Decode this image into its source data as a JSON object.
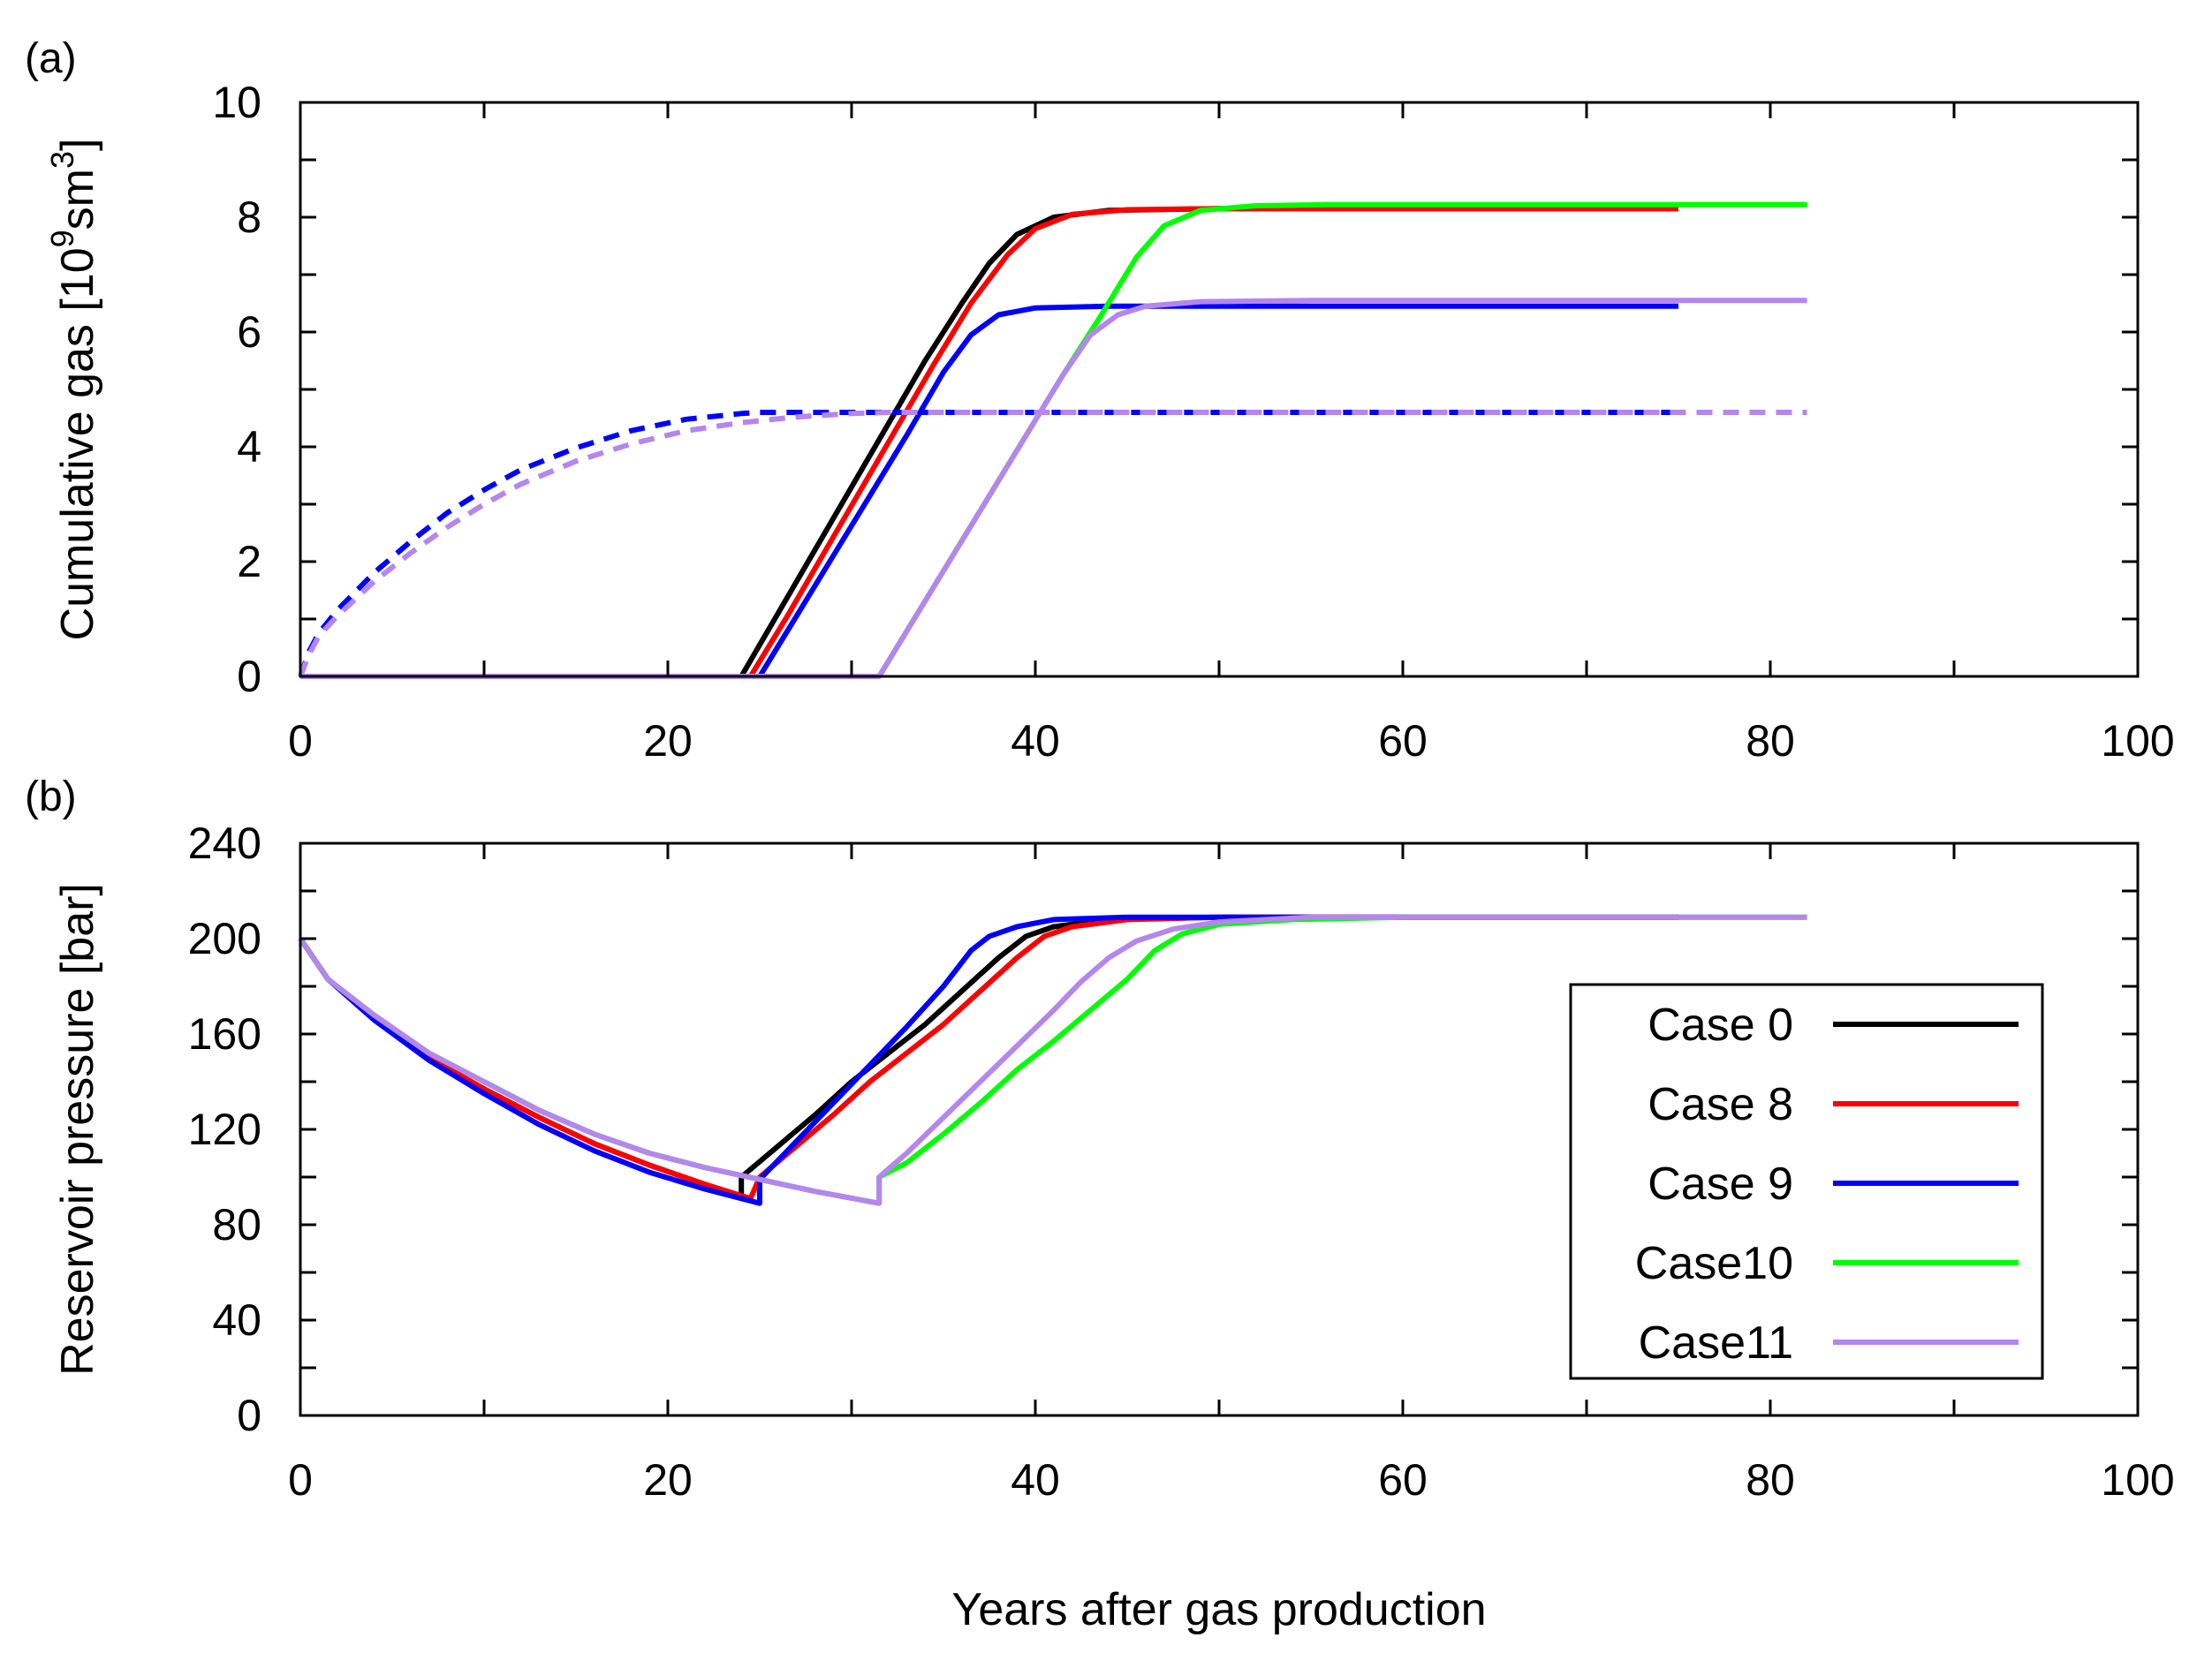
{
  "xlabel": "Years after gas production",
  "legend": {
    "entries": [
      {
        "label": "Case 0",
        "color": "#000000"
      },
      {
        "label": "Case 8",
        "color": "#ff0000"
      },
      {
        "label": "Case 9",
        "color": "#0000ff"
      },
      {
        "label": "Case10",
        "color": "#00ff00"
      },
      {
        "label": "Case11",
        "color": "#b586ee"
      }
    ]
  },
  "chart_data": [
    {
      "panel": "(a)",
      "type": "line",
      "ylabel_parts": {
        "pre": "Cumulative gas [10",
        "sup1": "9",
        "mid": "sm",
        "sup2": "3",
        "post": "]"
      },
      "xlim": [
        0,
        100
      ],
      "ylim": [
        0,
        10
      ],
      "xticks": [
        0,
        20,
        40,
        60,
        80,
        100
      ],
      "yticks": [
        0,
        2,
        4,
        6,
        8,
        10
      ],
      "series": [
        {
          "name": "Case 0",
          "color": "#000000",
          "dash": false,
          "points": [
            [
              0,
              0
            ],
            [
              24,
              0
            ],
            [
              26,
              1.1
            ],
            [
              28,
              2.2
            ],
            [
              30,
              3.3
            ],
            [
              32,
              4.4
            ],
            [
              34,
              5.5
            ],
            [
              36,
              6.5
            ],
            [
              37.5,
              7.2
            ],
            [
              39,
              7.7
            ],
            [
              41,
              8.0
            ],
            [
              44,
              8.12
            ],
            [
              50,
              8.15
            ],
            [
              60,
              8.15
            ],
            [
              75,
              8.15
            ]
          ]
        },
        {
          "name": "Case 8",
          "color": "#ff0000",
          "dash": false,
          "points": [
            [
              0,
              0
            ],
            [
              24.5,
              0
            ],
            [
              26.5,
              1.05
            ],
            [
              28.5,
              2.15
            ],
            [
              30.5,
              3.25
            ],
            [
              32.5,
              4.35
            ],
            [
              34.5,
              5.45
            ],
            [
              36.5,
              6.5
            ],
            [
              38.5,
              7.35
            ],
            [
              40,
              7.8
            ],
            [
              42,
              8.05
            ],
            [
              45,
              8.13
            ],
            [
              50,
              8.15
            ],
            [
              60,
              8.15
            ],
            [
              75,
              8.15
            ]
          ]
        },
        {
          "name": "Case 9",
          "color": "#0000ff",
          "dash": false,
          "points": [
            [
              0,
              0
            ],
            [
              25,
              0
            ],
            [
              27,
              1.05
            ],
            [
              29,
              2.1
            ],
            [
              31,
              3.15
            ],
            [
              33,
              4.2
            ],
            [
              35,
              5.3
            ],
            [
              36.5,
              5.95
            ],
            [
              38,
              6.3
            ],
            [
              40,
              6.42
            ],
            [
              44,
              6.45
            ],
            [
              50,
              6.45
            ],
            [
              60,
              6.45
            ],
            [
              75,
              6.45
            ]
          ]
        },
        {
          "name": "Case10",
          "color": "#00ff00",
          "dash": false,
          "points": [
            [
              0,
              0
            ],
            [
              31.5,
              0
            ],
            [
              33.5,
              1.05
            ],
            [
              35.5,
              2.1
            ],
            [
              37.5,
              3.15
            ],
            [
              39.5,
              4.2
            ],
            [
              41.5,
              5.25
            ],
            [
              43.5,
              6.25
            ],
            [
              45.5,
              7.3
            ],
            [
              47,
              7.85
            ],
            [
              49,
              8.12
            ],
            [
              52,
              8.2
            ],
            [
              56,
              8.22
            ],
            [
              65,
              8.22
            ],
            [
              82,
              8.22
            ]
          ]
        },
        {
          "name": "Case11",
          "color": "#b586ee",
          "dash": false,
          "points": [
            [
              0,
              0
            ],
            [
              31.5,
              0
            ],
            [
              33.5,
              1.05
            ],
            [
              35.5,
              2.1
            ],
            [
              37.5,
              3.15
            ],
            [
              39.5,
              4.2
            ],
            [
              41.5,
              5.25
            ],
            [
              43,
              5.95
            ],
            [
              44.5,
              6.3
            ],
            [
              46,
              6.45
            ],
            [
              49,
              6.53
            ],
            [
              55,
              6.55
            ],
            [
              65,
              6.55
            ],
            [
              82,
              6.55
            ]
          ]
        },
        {
          "name": "Case 9 dashed",
          "color": "#0000ff",
          "dash": true,
          "points": [
            [
              0,
              0
            ],
            [
              0.5,
              0.45
            ],
            [
              1,
              0.75
            ],
            [
              2,
              1.15
            ],
            [
              4,
              1.8
            ],
            [
              6,
              2.35
            ],
            [
              8,
              2.85
            ],
            [
              10,
              3.25
            ],
            [
              12,
              3.6
            ],
            [
              15,
              3.98
            ],
            [
              18,
              4.28
            ],
            [
              21,
              4.48
            ],
            [
              24,
              4.58
            ],
            [
              25,
              4.6
            ],
            [
              30,
              4.6
            ],
            [
              40,
              4.6
            ],
            [
              50,
              4.6
            ],
            [
              75,
              4.6
            ]
          ]
        },
        {
          "name": "Case11 dashed",
          "color": "#b586ee",
          "dash": true,
          "points": [
            [
              0,
              0
            ],
            [
              0.5,
              0.4
            ],
            [
              1,
              0.7
            ],
            [
              2,
              1.05
            ],
            [
              4,
              1.65
            ],
            [
              6,
              2.15
            ],
            [
              8,
              2.6
            ],
            [
              10,
              3.0
            ],
            [
              12,
              3.35
            ],
            [
              15,
              3.75
            ],
            [
              18,
              4.05
            ],
            [
              21,
              4.28
            ],
            [
              24,
              4.42
            ],
            [
              27,
              4.52
            ],
            [
              30,
              4.58
            ],
            [
              32,
              4.6
            ],
            [
              40,
              4.6
            ],
            [
              55,
              4.6
            ],
            [
              82,
              4.6
            ]
          ]
        }
      ]
    },
    {
      "panel": "(b)",
      "type": "line",
      "ylabel": "Reservoir pressure [bar]",
      "xlim": [
        0,
        100
      ],
      "ylim": [
        0,
        240
      ],
      "xticks": [
        0,
        20,
        40,
        60,
        80,
        100
      ],
      "yticks": [
        0,
        40,
        80,
        120,
        160,
        200,
        240
      ],
      "series": [
        {
          "name": "Case 0",
          "color": "#000000",
          "dash": false,
          "points": [
            [
              0,
              200
            ],
            [
              1.5,
              183
            ],
            [
              4,
              167
            ],
            [
              7,
              150
            ],
            [
              10,
              137
            ],
            [
              13,
              125
            ],
            [
              16,
              114
            ],
            [
              19,
              105
            ],
            [
              22,
              97
            ],
            [
              24,
              92
            ],
            [
              24,
              100
            ],
            [
              26,
              113
            ],
            [
              28,
              126
            ],
            [
              30,
              140
            ],
            [
              32,
              152
            ],
            [
              34,
              164
            ],
            [
              36,
              178
            ],
            [
              38,
              192
            ],
            [
              39.5,
              201
            ],
            [
              41,
              205
            ],
            [
              44,
              208
            ],
            [
              50,
              209
            ],
            [
              60,
              209
            ],
            [
              75,
              209
            ]
          ]
        },
        {
          "name": "Case 8",
          "color": "#ff0000",
          "dash": false,
          "points": [
            [
              0,
              200
            ],
            [
              1.5,
              183
            ],
            [
              4,
              167
            ],
            [
              7,
              150
            ],
            [
              10,
              137
            ],
            [
              13,
              125
            ],
            [
              16,
              114
            ],
            [
              19,
              105
            ],
            [
              22,
              97
            ],
            [
              24.5,
              91
            ],
            [
              25,
              100
            ],
            [
              27,
              113
            ],
            [
              29,
              126
            ],
            [
              31,
              140
            ],
            [
              33,
              152
            ],
            [
              35,
              164
            ],
            [
              37,
              178
            ],
            [
              39,
              192
            ],
            [
              40.5,
              201
            ],
            [
              42,
              205
            ],
            [
              45,
              208
            ],
            [
              50,
              209
            ],
            [
              60,
              209
            ],
            [
              75,
              209
            ]
          ]
        },
        {
          "name": "Case 9",
          "color": "#0000ff",
          "dash": false,
          "points": [
            [
              0,
              200
            ],
            [
              1.5,
              183
            ],
            [
              4,
              166
            ],
            [
              7,
              149
            ],
            [
              10,
              135
            ],
            [
              13,
              122
            ],
            [
              16,
              111
            ],
            [
              19,
              102
            ],
            [
              22,
              95
            ],
            [
              25,
              89
            ],
            [
              25,
              99
            ],
            [
              27,
              115
            ],
            [
              29,
              131
            ],
            [
              31,
              147
            ],
            [
              33,
              163
            ],
            [
              35,
              180
            ],
            [
              36.5,
              195
            ],
            [
              37.5,
              201
            ],
            [
              39,
              205
            ],
            [
              41,
              208
            ],
            [
              45,
              209
            ],
            [
              55,
              209
            ],
            [
              75,
              209
            ]
          ]
        },
        {
          "name": "Case10",
          "color": "#00ff00",
          "dash": false,
          "points": [
            [
              0,
              200
            ],
            [
              1.5,
              183
            ],
            [
              4,
              168
            ],
            [
              7,
              152
            ],
            [
              10,
              140
            ],
            [
              13,
              128
            ],
            [
              16,
              118
            ],
            [
              19,
              110
            ],
            [
              22,
              104
            ],
            [
              25,
              99
            ],
            [
              28,
              94
            ],
            [
              31.5,
              89
            ],
            [
              31.5,
              100
            ],
            [
              33,
              106
            ],
            [
              35,
              118
            ],
            [
              37,
              131
            ],
            [
              39,
              145
            ],
            [
              41,
              157
            ],
            [
              43,
              170
            ],
            [
              45,
              183
            ],
            [
              46.5,
              195
            ],
            [
              48,
              202
            ],
            [
              50,
              206
            ],
            [
              54,
              208
            ],
            [
              60,
              209
            ],
            [
              82,
              209
            ]
          ]
        },
        {
          "name": "Case11",
          "color": "#b586ee",
          "dash": false,
          "points": [
            [
              0,
              200
            ],
            [
              1.5,
              183
            ],
            [
              4,
              168
            ],
            [
              7,
              152
            ],
            [
              10,
              140
            ],
            [
              13,
              128
            ],
            [
              16,
              118
            ],
            [
              19,
              110
            ],
            [
              22,
              104
            ],
            [
              25,
              99
            ],
            [
              28,
              94
            ],
            [
              31.5,
              89
            ],
            [
              31.5,
              100
            ],
            [
              33,
              110
            ],
            [
              35,
              125
            ],
            [
              37,
              140
            ],
            [
              39,
              155
            ],
            [
              41,
              170
            ],
            [
              42.5,
              182
            ],
            [
              44,
              192
            ],
            [
              45.5,
              199
            ],
            [
              47.5,
              204
            ],
            [
              50,
              207
            ],
            [
              55,
              209
            ],
            [
              65,
              209
            ],
            [
              82,
              209
            ]
          ]
        }
      ]
    }
  ]
}
